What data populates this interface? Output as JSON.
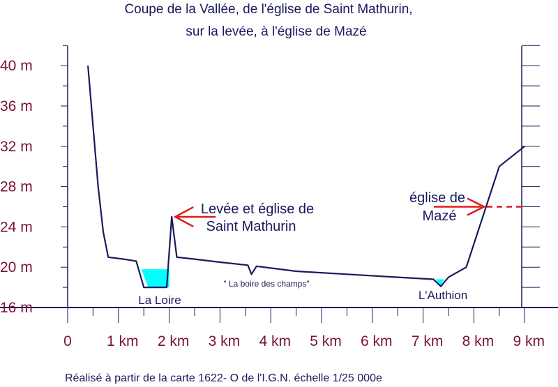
{
  "chart_data": {
    "type": "line",
    "title_lines": [
      "Coupe de la Vallée, de l'église de Saint Mathurin,",
      "sur la levée, à l'église de Mazé"
    ],
    "x_unit": "km",
    "y_unit": "m",
    "xlim": [
      0,
      9
    ],
    "ylim": [
      16,
      42
    ],
    "x_tick_labels": [
      "0",
      "1 km",
      "2 km",
      "3 km",
      "4 km",
      "5 km",
      "6 km",
      "7 km",
      "8 km",
      "9 km"
    ],
    "y_tick_labels": [
      "16 m",
      "20 m",
      "24 m",
      "28 m",
      "32 m",
      "36 m",
      "40 m"
    ],
    "y_tick_values": [
      16,
      20,
      24,
      28,
      32,
      36,
      40
    ],
    "series": [
      {
        "values": [
          [
            0.4,
            40
          ],
          [
            0.5,
            34
          ],
          [
            0.6,
            28
          ],
          [
            0.7,
            23.5
          ],
          [
            0.8,
            21
          ],
          [
            1.1,
            20.8
          ],
          [
            1.35,
            20.6
          ],
          [
            1.5,
            18
          ],
          [
            1.95,
            18
          ],
          [
            2.05,
            25
          ],
          [
            2.15,
            21
          ],
          [
            2.5,
            20.8
          ],
          [
            3.0,
            20.5
          ],
          [
            3.55,
            20.2
          ],
          [
            3.62,
            19.3
          ],
          [
            3.72,
            20.1
          ],
          [
            4.5,
            19.6
          ],
          [
            5.5,
            19.3
          ],
          [
            6.5,
            19.0
          ],
          [
            7.2,
            18.8
          ],
          [
            7.35,
            18.1
          ],
          [
            7.5,
            19.0
          ],
          [
            7.85,
            20.0
          ],
          [
            8.5,
            30.0
          ],
          [
            9.0,
            32.0
          ]
        ]
      }
    ],
    "water": [
      {
        "x": [
          1.45,
          2.0
        ],
        "y_bottom": 18,
        "y_top": 19.8,
        "color": "#00ffff"
      },
      {
        "x": [
          7.25,
          7.42
        ],
        "y_bottom": 18.1,
        "y_top": 18.8,
        "color": "#00ffff"
      }
    ],
    "annotations": {
      "levee": [
        "Levée et église de",
        "Saint Mathurin"
      ],
      "maze": [
        "église de",
        "Mazé"
      ],
      "loire": "La Loire",
      "boire": "\" La boire des champs\"",
      "authion": "L'Authion"
    },
    "credit": "Réalisé à partir de la carte 1622- O de l'I.G.N. échelle 1/25 000e",
    "colors": {
      "axis": "#1a1a5e",
      "profile": "#1a1a5e",
      "tick_label": "#7a1330",
      "arrow": "#e01b1b",
      "water": "#00ffff",
      "text": "#1a1a5e"
    }
  }
}
